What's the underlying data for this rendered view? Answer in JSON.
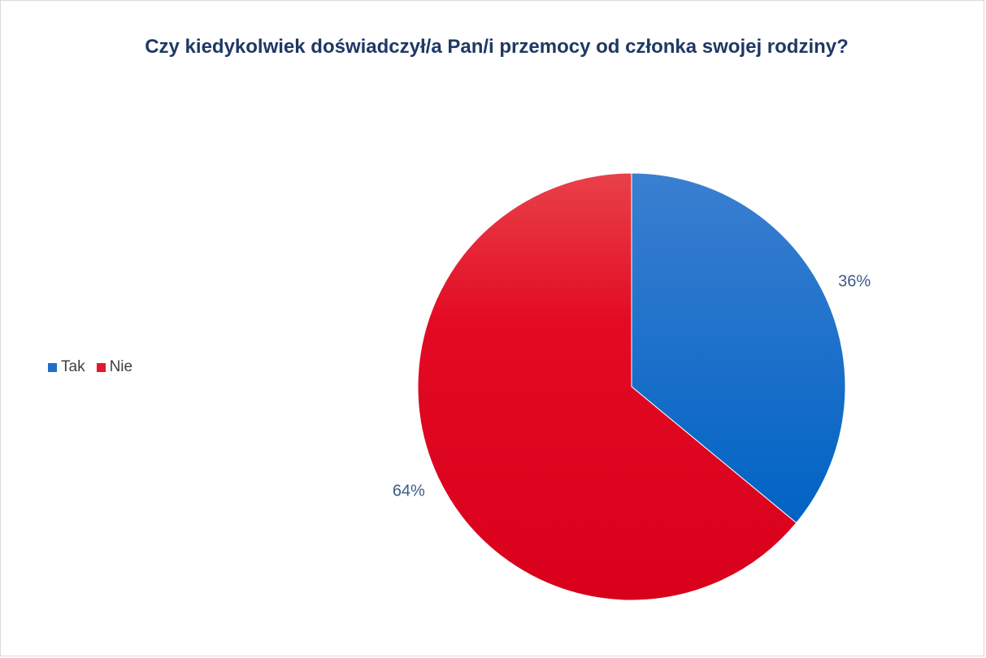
{
  "chart_data": {
    "type": "pie",
    "title": "Czy kiedykolwiek doświadczył/a Pan/i przemocy od członka swojej rodziny?",
    "categories": [
      "Tak",
      "Nie"
    ],
    "values": [
      36,
      64
    ],
    "data_labels": [
      "36%",
      "64%"
    ],
    "colors": [
      "#1f6fc8",
      "#e2182c"
    ],
    "legend_position": "left"
  }
}
